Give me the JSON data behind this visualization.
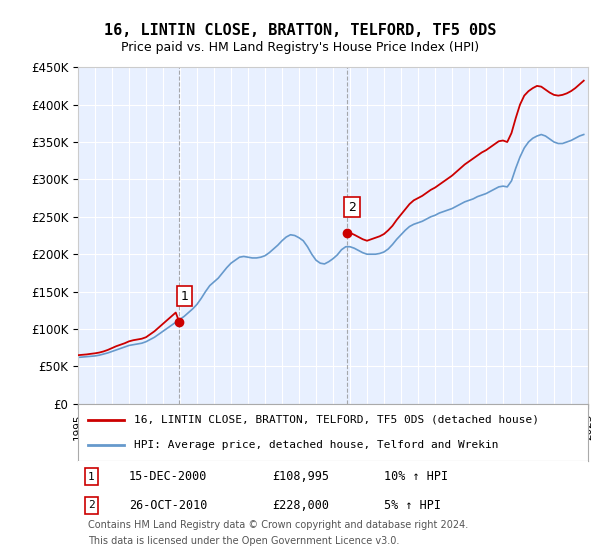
{
  "title": "16, LINTIN CLOSE, BRATTON, TELFORD, TF5 0DS",
  "subtitle": "Price paid vs. HM Land Registry's House Price Index (HPI)",
  "ylabel": "",
  "xlabel": "",
  "ylim": [
    0,
    450000
  ],
  "yticks": [
    0,
    50000,
    100000,
    150000,
    200000,
    250000,
    300000,
    350000,
    400000,
    450000
  ],
  "ytick_labels": [
    "£0",
    "£50K",
    "£100K",
    "£150K",
    "£200K",
    "£250K",
    "£300K",
    "£350K",
    "£400K",
    "£450K"
  ],
  "bg_color": "#ffffff",
  "plot_bg_color": "#e8f0ff",
  "grid_color": "#ffffff",
  "red_color": "#cc0000",
  "blue_color": "#6699cc",
  "purchase1_date": "15-DEC-2000",
  "purchase1_price": 108995,
  "purchase1_hpi": "10% ↑ HPI",
  "purchase1_year": 2000.96,
  "purchase2_date": "26-OCT-2010",
  "purchase2_price": 228000,
  "purchase2_hpi": "5% ↑ HPI",
  "purchase2_year": 2010.81,
  "legend_label_red": "16, LINTIN CLOSE, BRATTON, TELFORD, TF5 0DS (detached house)",
  "legend_label_blue": "HPI: Average price, detached house, Telford and Wrekin",
  "footer1": "Contains HM Land Registry data © Crown copyright and database right 2024.",
  "footer2": "This data is licensed under the Open Government Licence v3.0.",
  "hpi_data": {
    "years": [
      1995.0,
      1995.25,
      1995.5,
      1995.75,
      1996.0,
      1996.25,
      1996.5,
      1996.75,
      1997.0,
      1997.25,
      1997.5,
      1997.75,
      1998.0,
      1998.25,
      1998.5,
      1998.75,
      1999.0,
      1999.25,
      1999.5,
      1999.75,
      2000.0,
      2000.25,
      2000.5,
      2000.75,
      2001.0,
      2001.25,
      2001.5,
      2001.75,
      2002.0,
      2002.25,
      2002.5,
      2002.75,
      2003.0,
      2003.25,
      2003.5,
      2003.75,
      2004.0,
      2004.25,
      2004.5,
      2004.75,
      2005.0,
      2005.25,
      2005.5,
      2005.75,
      2006.0,
      2006.25,
      2006.5,
      2006.75,
      2007.0,
      2007.25,
      2007.5,
      2007.75,
      2008.0,
      2008.25,
      2008.5,
      2008.75,
      2009.0,
      2009.25,
      2009.5,
      2009.75,
      2010.0,
      2010.25,
      2010.5,
      2010.75,
      2011.0,
      2011.25,
      2011.5,
      2011.75,
      2012.0,
      2012.25,
      2012.5,
      2012.75,
      2013.0,
      2013.25,
      2013.5,
      2013.75,
      2014.0,
      2014.25,
      2014.5,
      2014.75,
      2015.0,
      2015.25,
      2015.5,
      2015.75,
      2016.0,
      2016.25,
      2016.5,
      2016.75,
      2017.0,
      2017.25,
      2017.5,
      2017.75,
      2018.0,
      2018.25,
      2018.5,
      2018.75,
      2019.0,
      2019.25,
      2019.5,
      2019.75,
      2020.0,
      2020.25,
      2020.5,
      2020.75,
      2021.0,
      2021.25,
      2021.5,
      2021.75,
      2022.0,
      2022.25,
      2022.5,
      2022.75,
      2023.0,
      2023.25,
      2023.5,
      2023.75,
      2024.0,
      2024.25,
      2024.5,
      2024.75
    ],
    "hpi_values": [
      62000,
      62500,
      63000,
      63500,
      64000,
      65000,
      66500,
      68000,
      70000,
      72000,
      74000,
      76000,
      78000,
      79000,
      80000,
      81000,
      83000,
      86000,
      89000,
      93000,
      97000,
      101000,
      105000,
      109000,
      113000,
      117000,
      122000,
      127000,
      133000,
      141000,
      150000,
      158000,
      163000,
      168000,
      175000,
      182000,
      188000,
      192000,
      196000,
      197000,
      196000,
      195000,
      195000,
      196000,
      198000,
      202000,
      207000,
      212000,
      218000,
      223000,
      226000,
      225000,
      222000,
      218000,
      210000,
      200000,
      192000,
      188000,
      187000,
      190000,
      194000,
      199000,
      206000,
      210000,
      210000,
      208000,
      205000,
      202000,
      200000,
      200000,
      200000,
      201000,
      203000,
      207000,
      213000,
      220000,
      226000,
      232000,
      237000,
      240000,
      242000,
      244000,
      247000,
      250000,
      252000,
      255000,
      257000,
      259000,
      261000,
      264000,
      267000,
      270000,
      272000,
      274000,
      277000,
      279000,
      281000,
      284000,
      287000,
      290000,
      291000,
      290000,
      298000,
      315000,
      330000,
      342000,
      350000,
      355000,
      358000,
      360000,
      358000,
      354000,
      350000,
      348000,
      348000,
      350000,
      352000,
      355000,
      358000,
      360000
    ],
    "property_values": [
      65000,
      65500,
      66000,
      66800,
      67500,
      68500,
      70000,
      72000,
      74500,
      77000,
      79000,
      81000,
      83500,
      85000,
      86000,
      87000,
      89000,
      93000,
      97000,
      102000,
      107000,
      112000,
      117000,
      122000,
      127000,
      132000,
      null,
      null,
      null,
      null,
      null,
      null,
      null,
      null,
      null,
      null,
      null,
      null,
      null,
      null,
      null,
      null,
      null,
      null,
      null,
      null,
      null,
      null,
      null,
      null,
      null,
      null,
      null,
      null,
      null,
      null,
      null,
      null,
      null,
      null,
      null,
      null,
      null,
      null,
      null,
      null,
      null,
      null,
      null,
      null,
      null,
      null,
      null,
      null,
      null,
      null,
      null,
      null,
      null,
      null,
      null,
      null,
      null,
      null,
      null,
      null,
      null,
      null,
      null,
      null,
      null,
      null,
      null,
      null,
      null,
      null,
      null,
      null,
      null,
      null,
      null,
      null,
      null,
      null,
      null,
      null,
      null,
      null,
      null,
      null,
      null,
      null,
      null,
      null,
      null,
      null
    ]
  },
  "red_segments": [
    {
      "years": [
        1995.0,
        1995.25,
        1995.5,
        1995.75,
        1996.0,
        1996.25,
        1996.5,
        1996.75,
        1997.0,
        1997.25,
        1997.5,
        1997.75,
        1998.0,
        1998.25,
        1998.5,
        1998.75,
        1999.0,
        1999.25,
        1999.5,
        1999.75,
        2000.0,
        2000.25,
        2000.5,
        2000.75,
        2000.96
      ],
      "values": [
        65000,
        65500,
        66000,
        66800,
        67500,
        68500,
        70000,
        72000,
        74500,
        77000,
        79000,
        81000,
        83500,
        85000,
        86000,
        87000,
        89000,
        93000,
        97000,
        102000,
        107000,
        112000,
        117000,
        122000,
        108995
      ]
    },
    {
      "years": [
        2010.81,
        2011.0,
        2011.25,
        2011.5,
        2011.75,
        2012.0,
        2012.25,
        2012.5,
        2012.75,
        2013.0,
        2013.25,
        2013.5,
        2013.75,
        2014.0,
        2014.25,
        2014.5,
        2014.75,
        2015.0,
        2015.25,
        2015.5,
        2015.75,
        2016.0,
        2016.25,
        2016.5,
        2016.75,
        2017.0,
        2017.25,
        2017.5,
        2017.75,
        2018.0,
        2018.25,
        2018.5,
        2018.75,
        2019.0,
        2019.25,
        2019.5,
        2019.75,
        2020.0,
        2020.25,
        2020.5,
        2020.75,
        2021.0,
        2021.25,
        2021.5,
        2021.75,
        2022.0,
        2022.25,
        2022.5,
        2022.75,
        2023.0,
        2023.25,
        2023.5,
        2023.75,
        2024.0,
        2024.25,
        2024.5,
        2024.75
      ],
      "values": [
        228000,
        228500,
        226000,
        223000,
        220000,
        218000,
        220000,
        222000,
        224000,
        227000,
        232000,
        238000,
        246000,
        253000,
        260000,
        267000,
        272000,
        275000,
        278000,
        282000,
        286000,
        289000,
        293000,
        297000,
        301000,
        305000,
        310000,
        315000,
        320000,
        324000,
        328000,
        332000,
        336000,
        339000,
        343000,
        347000,
        351000,
        352000,
        350000,
        362000,
        382000,
        400000,
        412000,
        418000,
        422000,
        425000,
        424000,
        420000,
        416000,
        413000,
        412000,
        413000,
        415000,
        418000,
        422000,
        427000,
        432000
      ]
    }
  ]
}
